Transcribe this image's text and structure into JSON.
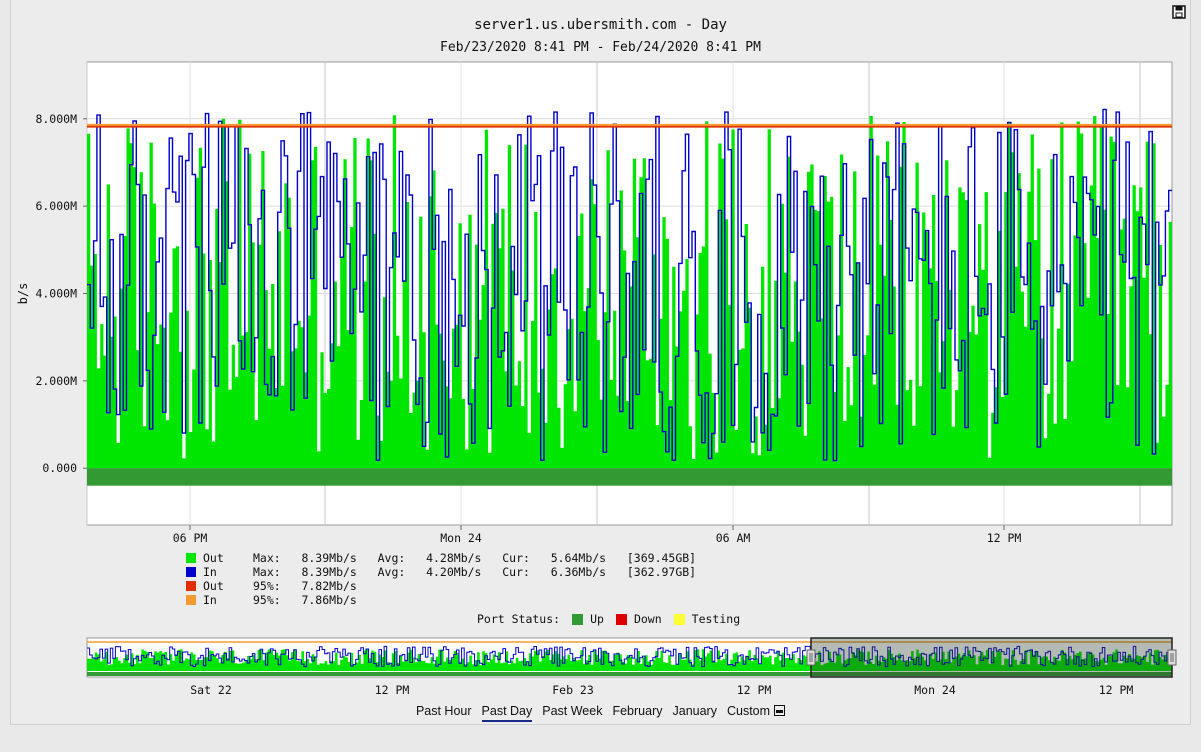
{
  "header": {
    "title": "server1.us.ubersmith.com - Day",
    "subtitle": "Feb/23/2020 8:41 PM - Feb/24/2020 8:41 PM",
    "save_icon": "save-icon"
  },
  "chart_data": [
    {
      "type": "line",
      "ylabel": "b/s",
      "yticks": [
        "0.000",
        "2.000M",
        "4.000M",
        "6.000M",
        "8.000M"
      ],
      "ylim": [
        -1300000,
        9300000
      ],
      "xticks": [
        "06 PM",
        "Mon 24",
        "06 AM",
        "12 PM"
      ],
      "grid": true,
      "series": [
        {
          "name": "Out",
          "style": "area",
          "color": "#00e600",
          "max": 8390000,
          "avg": 4280000,
          "cur": 5640000
        },
        {
          "name": "In",
          "style": "line",
          "color": "#0000cc",
          "max": 8390000,
          "avg": 4200000,
          "cur": 6360000
        },
        {
          "name": "Out 95%",
          "style": "hline",
          "color": "#e03000",
          "value": 7820000
        },
        {
          "name": "In 95%",
          "style": "hline",
          "color": "#f59a30",
          "value": 7860000
        }
      ],
      "port_status_band": {
        "color": "#339933",
        "from": -400000,
        "to": 0
      }
    },
    {
      "type": "line",
      "xticks": [
        "Sat 22",
        "12 PM",
        "Feb 23",
        "12 PM",
        "Mon 24",
        "12 PM"
      ],
      "series": [
        {
          "name": "Out",
          "style": "area",
          "color": "#00e600"
        },
        {
          "name": "In",
          "style": "line",
          "color": "#0000cc"
        }
      ],
      "selected_range": "Feb 23 8:41 PM to Feb 24 8:41 PM"
    }
  ],
  "legend": [
    {
      "color": "#00e600",
      "name": "Out",
      "text": "Max:   8.39Mb/s   Avg:   4.28Mb/s   Cur:   5.64Mb/s   [369.45GB]"
    },
    {
      "color": "#0000cc",
      "name": "In",
      "text": "Max:   8.39Mb/s   Avg:   4.20Mb/s   Cur:   6.36Mb/s   [362.97GB]"
    },
    {
      "color": "#e03000",
      "name": "Out",
      "text": "95%:   7.82Mb/s"
    },
    {
      "color": "#f59a30",
      "name": "In",
      "text": "95%:   7.86Mb/s"
    }
  ],
  "port_status": {
    "label": "Port Status:",
    "items": [
      {
        "color": "#339933",
        "label": "Up"
      },
      {
        "color": "#dd0000",
        "label": "Down"
      },
      {
        "color": "#ffff33",
        "label": "Testing"
      }
    ]
  },
  "tabs": [
    {
      "label": "Past Hour",
      "active": false
    },
    {
      "label": "Past Day",
      "active": true
    },
    {
      "label": "Past Week",
      "active": false
    },
    {
      "label": "February",
      "active": false
    },
    {
      "label": "January",
      "active": false
    },
    {
      "label": "Custom",
      "active": false,
      "icon": "calendar-icon"
    }
  ]
}
